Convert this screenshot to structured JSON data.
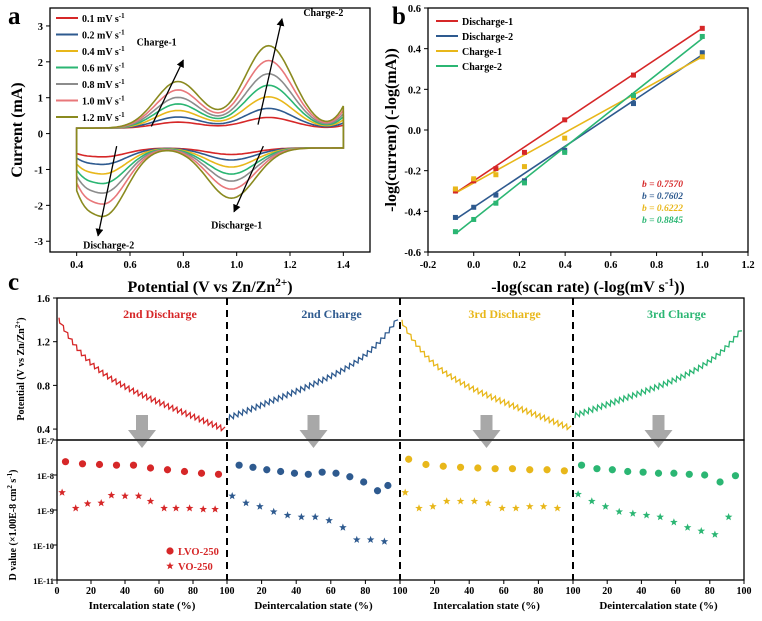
{
  "panel_labels": {
    "a": "a",
    "b": "b",
    "c": "c"
  },
  "chart_data": [
    {
      "panel": "a",
      "type": "line",
      "xlabel": "Potential (V vs Zn/Zn",
      "xlabel_sup": "2+",
      "xlabel_close": ")",
      "ylabel": "Current (mA)",
      "xlim": [
        0.3,
        1.5
      ],
      "ylim": [
        -3.3,
        3.5
      ],
      "xticks": [
        0.4,
        0.6,
        0.8,
        1.0,
        1.2,
        1.4
      ],
      "xtick_labels": [
        "0.4",
        "0.6",
        "0.8",
        "1.0",
        "1.2",
        "1.4"
      ],
      "yticks": [
        -3,
        -2,
        -1,
        0,
        1,
        2,
        3
      ],
      "ytick_labels": [
        "-3",
        "-2",
        "-1",
        "0",
        "1",
        "2",
        "3"
      ],
      "legend_position": "top-left",
      "unit_text": "mV s",
      "unit_sup": "-1",
      "series": [
        {
          "name": "0.1",
          "color": "#d62728",
          "scale": 0.13
        },
        {
          "name": "0.2",
          "color": "#2e5a8f",
          "scale": 0.24
        },
        {
          "name": "0.4",
          "color": "#e8b71a",
          "scale": 0.38
        },
        {
          "name": "0.6",
          "color": "#2bb673",
          "scale": 0.52
        },
        {
          "name": "0.8",
          "color": "#8c8c8c",
          "scale": 0.66
        },
        {
          "name": "1.0",
          "color": "#e8777a",
          "scale": 0.82
        },
        {
          "name": "1.2",
          "color": "#8a8a1f",
          "scale": 1.0
        }
      ],
      "peaks": {
        "charge1": [
          0.78,
          1.95
        ],
        "charge2": [
          1.12,
          3.05
        ],
        "discharge1": [
          0.98,
          -2.05
        ],
        "discharge2": [
          0.5,
          -2.75
        ]
      },
      "annotations": [
        "Charge-1",
        "Charge-2",
        "Discharge-1",
        "Discharge-2"
      ]
    },
    {
      "panel": "b",
      "type": "scatter",
      "xlabel": "-log(scan rate) (-log(mV s",
      "xlabel_sup": "-1",
      "xlabel_close": "))",
      "ylabel": "-log(current) (-log(mA))",
      "xlim": [
        -0.2,
        1.2
      ],
      "ylim": [
        -0.6,
        0.6
      ],
      "xticks": [
        -0.2,
        0.0,
        0.2,
        0.4,
        0.6,
        0.8,
        1.0,
        1.2
      ],
      "xtick_labels": [
        "-0.2",
        "0.0",
        "0.2",
        "0.4",
        "0.6",
        "0.8",
        "1.0",
        "1.2"
      ],
      "yticks": [
        -0.6,
        -0.4,
        -0.2,
        0.0,
        0.2,
        0.4,
        0.6
      ],
      "ytick_labels": [
        "-0.6",
        "-0.4",
        "-0.2",
        "0.0",
        "0.2",
        "0.4",
        "0.6"
      ],
      "legend_position": "top-left",
      "x": [
        -0.08,
        0.0,
        0.097,
        0.222,
        0.398,
        0.699,
        1.0
      ],
      "series": [
        {
          "name": "Discharge-1",
          "color": "#d62728",
          "y": [
            -0.3,
            -0.25,
            -0.19,
            -0.11,
            0.05,
            0.27,
            0.5
          ],
          "b": "b = 0.7570"
        },
        {
          "name": "Discharge-2",
          "color": "#2e5a8f",
          "y": [
            -0.43,
            -0.38,
            -0.32,
            -0.25,
            -0.1,
            0.13,
            0.38
          ],
          "b": "b = 0.7602"
        },
        {
          "name": "Charge-1",
          "color": "#e8b71a",
          "y": [
            -0.29,
            -0.24,
            -0.22,
            -0.18,
            -0.04,
            0.16,
            0.36
          ],
          "b": "b = 0.6222"
        },
        {
          "name": "Charge-2",
          "color": "#2bb673",
          "y": [
            -0.5,
            -0.44,
            -0.36,
            -0.26,
            -0.11,
            0.17,
            0.46
          ],
          "b": "b = 0.8845"
        }
      ],
      "fits": [
        {
          "series": "Discharge-1",
          "y0": -0.31,
          "y1": 0.5
        },
        {
          "series": "Discharge-2",
          "y0": -0.44,
          "y1": 0.37
        },
        {
          "series": "Charge-1",
          "y0": -0.31,
          "y1": 0.36
        },
        {
          "series": "Charge-2",
          "y0": -0.51,
          "y1": 0.45
        }
      ]
    },
    {
      "panel": "c-top",
      "type": "line",
      "ylabel": "Potential (V vs Zn/Zn",
      "ylabel_sup": "2+",
      "ylabel_close": ")",
      "ylim": [
        0.3,
        1.6
      ],
      "yticks": [
        0.4,
        0.8,
        1.2,
        1.6
      ],
      "ytick_labels": [
        "0.4",
        "0.8",
        "1.2",
        "1.6"
      ],
      "segments": [
        {
          "name": "2nd Discharge",
          "color": "#d62728",
          "start": 1.42,
          "end": 0.42,
          "teeth": 38,
          "dir": -1
        },
        {
          "name": "2nd Charge",
          "color": "#2e5a8f",
          "start": 0.48,
          "end": 1.4,
          "teeth": 38,
          "dir": 1
        },
        {
          "name": "3rd Discharge",
          "color": "#e8b71a",
          "start": 1.4,
          "end": 0.43,
          "teeth": 38,
          "dir": -1
        },
        {
          "name": "3rd Charge",
          "color": "#2bb673",
          "start": 0.5,
          "end": 1.3,
          "teeth": 38,
          "dir": 1
        }
      ]
    },
    {
      "panel": "c-bottom",
      "type": "scatter",
      "ylabel": "D value (×1.00E-8 cm",
      "ylabel_sup": "2",
      "ylabel_mid": " s",
      "ylabel_sup2": "-1",
      "ylabel_close": ")",
      "y_scale": "log",
      "ylim_log10": [
        -11,
        -7
      ],
      "yticks_log10": [
        -11,
        -10,
        -9,
        -8,
        -7
      ],
      "ytick_labels": [
        "1E-11",
        "1E-10",
        "1E-9",
        "1E-8",
        "1E-7"
      ],
      "xlabels": [
        "Intercalation state (%)",
        "Deintercalation state (%)",
        "Intercalation state (%)",
        "Deintercalation state (%)"
      ],
      "xticks": [
        0,
        20,
        40,
        60,
        80,
        100
      ],
      "xtick_labels": [
        "0",
        "20",
        "40",
        "60",
        "80",
        "100"
      ],
      "legend_position": "bottom-left",
      "legend": [
        {
          "name": "LVO-250",
          "marker": "circle"
        },
        {
          "name": "VO-250",
          "marker": "star"
        }
      ],
      "segments": [
        {
          "color": "#d62728",
          "x": [
            5,
            15,
            25,
            35,
            45,
            55,
            65,
            75,
            85,
            95
          ],
          "lvo_log": [
            -7.62,
            -7.68,
            -7.7,
            -7.72,
            -7.72,
            -7.8,
            -7.85,
            -7.9,
            -7.95,
            -7.98
          ],
          "x_vo": [
            3,
            11,
            18,
            26,
            32,
            40,
            48,
            55,
            63,
            70,
            78,
            86,
            93
          ],
          "vo_log": [
            -8.5,
            -8.95,
            -8.82,
            -8.8,
            -8.58,
            -8.6,
            -8.6,
            -8.75,
            -8.95,
            -8.95,
            -8.95,
            -8.98,
            -8.98
          ]
        },
        {
          "color": "#2e5a8f",
          "x": [
            7,
            15,
            23,
            31,
            39,
            47,
            55,
            63,
            71,
            79,
            87,
            93
          ],
          "lvo_log": [
            -7.72,
            -7.78,
            -7.85,
            -7.9,
            -7.95,
            -7.98,
            -7.92,
            -7.95,
            -8.05,
            -8.2,
            -8.45,
            -8.3
          ],
          "x_vo": [
            3,
            11,
            19,
            27,
            35,
            43,
            51,
            59,
            67,
            75,
            83,
            91
          ],
          "vo_log": [
            -8.6,
            -8.8,
            -8.9,
            -9.05,
            -9.15,
            -9.2,
            -9.2,
            -9.3,
            -9.5,
            -9.85,
            -9.85,
            -9.9
          ]
        },
        {
          "color": "#e8b71a",
          "x": [
            5,
            15,
            25,
            35,
            45,
            55,
            65,
            75,
            85,
            95
          ],
          "lvo_log": [
            -7.55,
            -7.7,
            -7.75,
            -7.78,
            -7.8,
            -7.82,
            -7.82,
            -7.85,
            -7.85,
            -7.88
          ],
          "x_vo": [
            3,
            11,
            19,
            27,
            35,
            43,
            51,
            59,
            67,
            75,
            83,
            91
          ],
          "vo_log": [
            -8.5,
            -8.95,
            -8.9,
            -8.75,
            -8.75,
            -8.75,
            -8.8,
            -8.95,
            -8.95,
            -8.9,
            -8.9,
            -8.95
          ]
        },
        {
          "color": "#2bb673",
          "x": [
            5,
            14,
            23,
            32,
            41,
            50,
            59,
            68,
            77,
            86,
            95
          ],
          "lvo_log": [
            -7.72,
            -7.82,
            -7.85,
            -7.9,
            -7.92,
            -7.95,
            -7.95,
            -7.98,
            -8.0,
            -8.2,
            -8.02
          ],
          "x_vo": [
            3,
            11,
            19,
            27,
            35,
            43,
            51,
            59,
            67,
            75,
            83,
            91
          ],
          "vo_log": [
            -8.55,
            -8.75,
            -8.9,
            -9.05,
            -9.1,
            -9.15,
            -9.2,
            -9.35,
            -9.5,
            -9.6,
            -9.7,
            -9.2
          ]
        }
      ]
    }
  ]
}
